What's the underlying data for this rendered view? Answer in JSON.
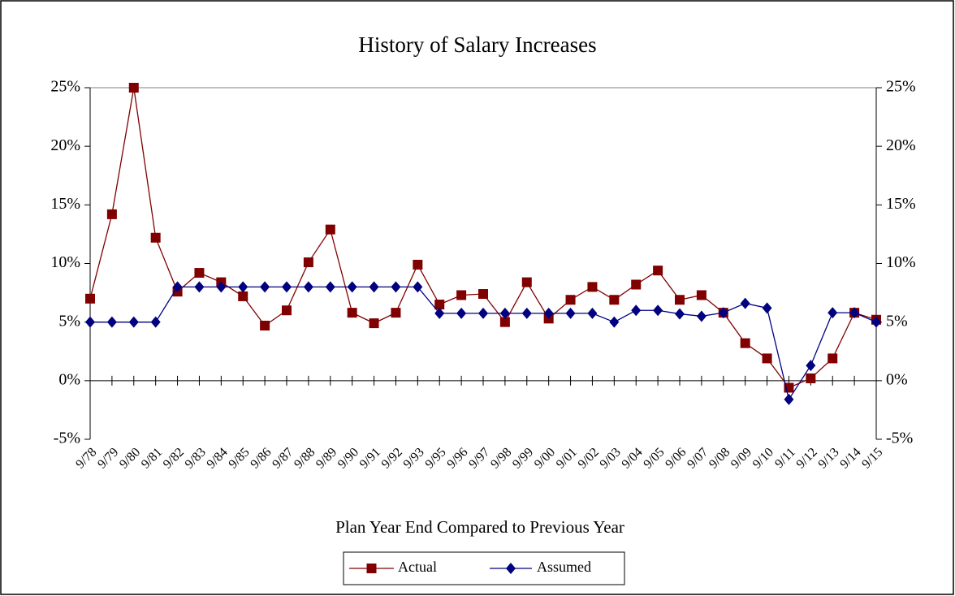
{
  "chart_data": {
    "type": "line",
    "title": "History of Salary Increases",
    "x_label": "Plan Year End Compared to Previous Year",
    "categories": [
      "9/78",
      "9/79",
      "9/80",
      "9/81",
      "9/82",
      "9/83",
      "9/84",
      "9/85",
      "9/86",
      "9/87",
      "9/88",
      "9/89",
      "9/90",
      "9/91",
      "9/92",
      "9/93",
      "9/95",
      "9/96",
      "9/97",
      "9/98",
      "9/99",
      "9/00",
      "9/01",
      "9/02",
      "9/03",
      "9/04",
      "9/05",
      "9/06",
      "9/07",
      "9/08",
      "9/09",
      "9/10",
      "9/11",
      "9/12",
      "9/13",
      "9/14",
      "9/15"
    ],
    "series": [
      {
        "name": "Actual",
        "color": "#800000",
        "marker": "square",
        "values": [
          7.0,
          14.2,
          25.0,
          12.2,
          7.6,
          9.2,
          8.4,
          7.2,
          4.7,
          6.0,
          10.1,
          12.9,
          5.8,
          4.9,
          5.8,
          9.9,
          6.5,
          7.3,
          7.4,
          5.0,
          8.4,
          5.3,
          6.9,
          8.0,
          6.9,
          8.2,
          9.4,
          6.9,
          7.3,
          5.8,
          3.2,
          1.9,
          -0.6,
          0.2,
          1.9,
          5.8,
          5.2
        ]
      },
      {
        "name": "Assumed",
        "color": "#000080",
        "marker": "diamond",
        "values": [
          5.0,
          5.0,
          5.0,
          5.0,
          8.0,
          8.0,
          8.0,
          8.0,
          8.0,
          8.0,
          8.0,
          8.0,
          8.0,
          8.0,
          8.0,
          8.0,
          5.75,
          5.75,
          5.75,
          5.75,
          5.75,
          5.75,
          5.75,
          5.75,
          5.0,
          6.0,
          6.0,
          5.7,
          5.5,
          5.8,
          6.6,
          6.2,
          -1.6,
          1.3,
          5.8,
          5.8,
          5.0
        ]
      }
    ],
    "ylim": [
      -5,
      25
    ],
    "yticks": [
      {
        "value": -5,
        "label": "-5%"
      },
      {
        "value": 0,
        "label": "0%"
      },
      {
        "value": 5,
        "label": "5%"
      },
      {
        "value": 10,
        "label": "10%"
      },
      {
        "value": 15,
        "label": "15%"
      },
      {
        "value": 20,
        "label": "20%"
      },
      {
        "value": 25,
        "label": "25%"
      }
    ]
  }
}
